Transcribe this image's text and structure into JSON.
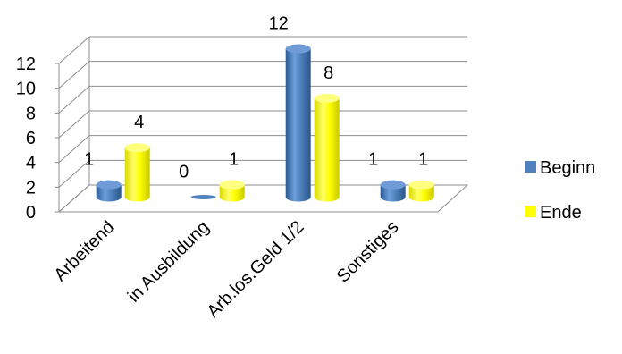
{
  "chart_data": {
    "type": "bar",
    "style": "3d-cylinder",
    "title": "",
    "xlabel": "",
    "ylabel": "",
    "categories": [
      "Arbeitend",
      "in Ausbildung",
      "Arb.los.Geld 1/2",
      "Sonstiges"
    ],
    "series": [
      {
        "name": "Beginn",
        "values": [
          1,
          0,
          12,
          1
        ],
        "color": "#4F81BD"
      },
      {
        "name": "Ende",
        "values": [
          4,
          1,
          8,
          1
        ],
        "color": "#FFFF00"
      }
    ],
    "ylim": [
      0,
      12
    ],
    "yticks": [
      "0",
      "2",
      "4",
      "6",
      "8",
      "10",
      "12"
    ],
    "grid": true,
    "legend": "right",
    "data_labels": true
  }
}
